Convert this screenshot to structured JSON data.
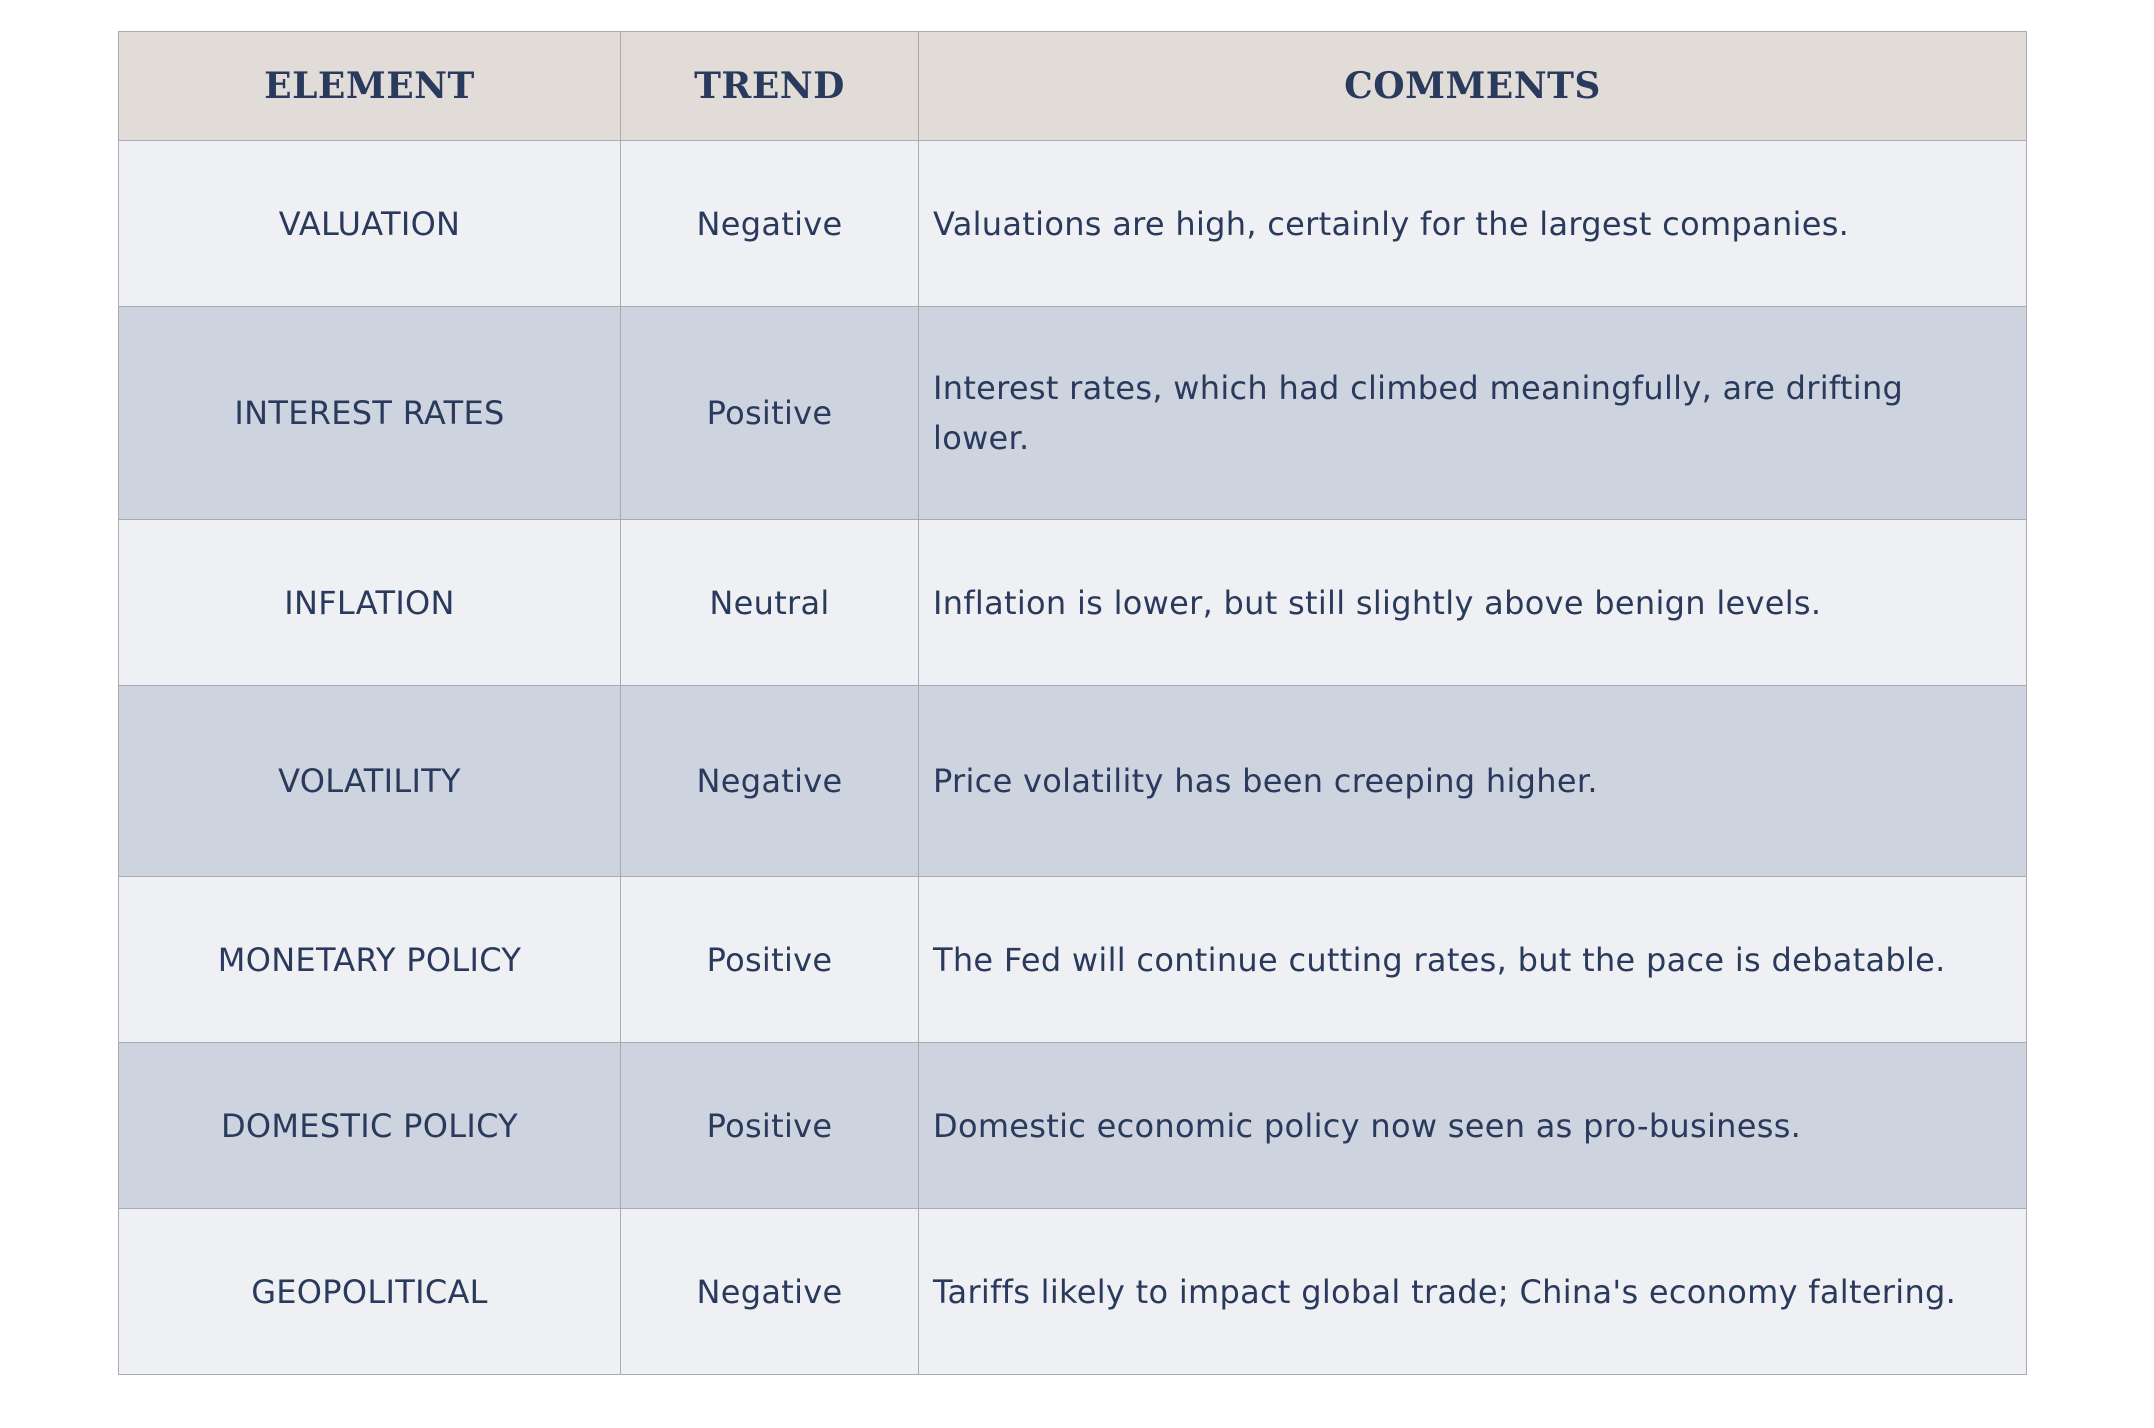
{
  "table": {
    "headers": {
      "element": "ELEMENT",
      "trend": "TREND",
      "comments": "COMMENTS"
    },
    "rows": [
      {
        "element": "VALUATION",
        "trend": "Negative",
        "comment": "Valuations are high, certainly for the largest companies."
      },
      {
        "element": "INTEREST RATES",
        "trend": "Positive",
        "comment": "Interest rates, which had climbed meaningfully, are drifting lower."
      },
      {
        "element": "INFLATION",
        "trend": "Neutral",
        "comment": "Inflation is lower, but still slightly above benign levels."
      },
      {
        "element": "VOLATILITY",
        "trend": "Negative",
        "comment": "Price volatility has been creeping higher."
      },
      {
        "element": "MONETARY POLICY",
        "trend": "Positive",
        "comment": "The Fed will continue cutting rates, but the pace is debatable."
      },
      {
        "element": "DOMESTIC POLICY",
        "trend": "Positive",
        "comment": "Domestic economic policy now seen as pro-business."
      },
      {
        "element": "GEOPOLITICAL",
        "trend": "Negative",
        "comment": "Tariffs likely to impact global trade; China's economy faltering."
      }
    ]
  },
  "colors": {
    "header_bg": "#e2dcd8",
    "row_light": "#eff0f3",
    "row_dark": "#cdd3df",
    "text": "#2a3a5c",
    "border": "#a9abb0"
  }
}
